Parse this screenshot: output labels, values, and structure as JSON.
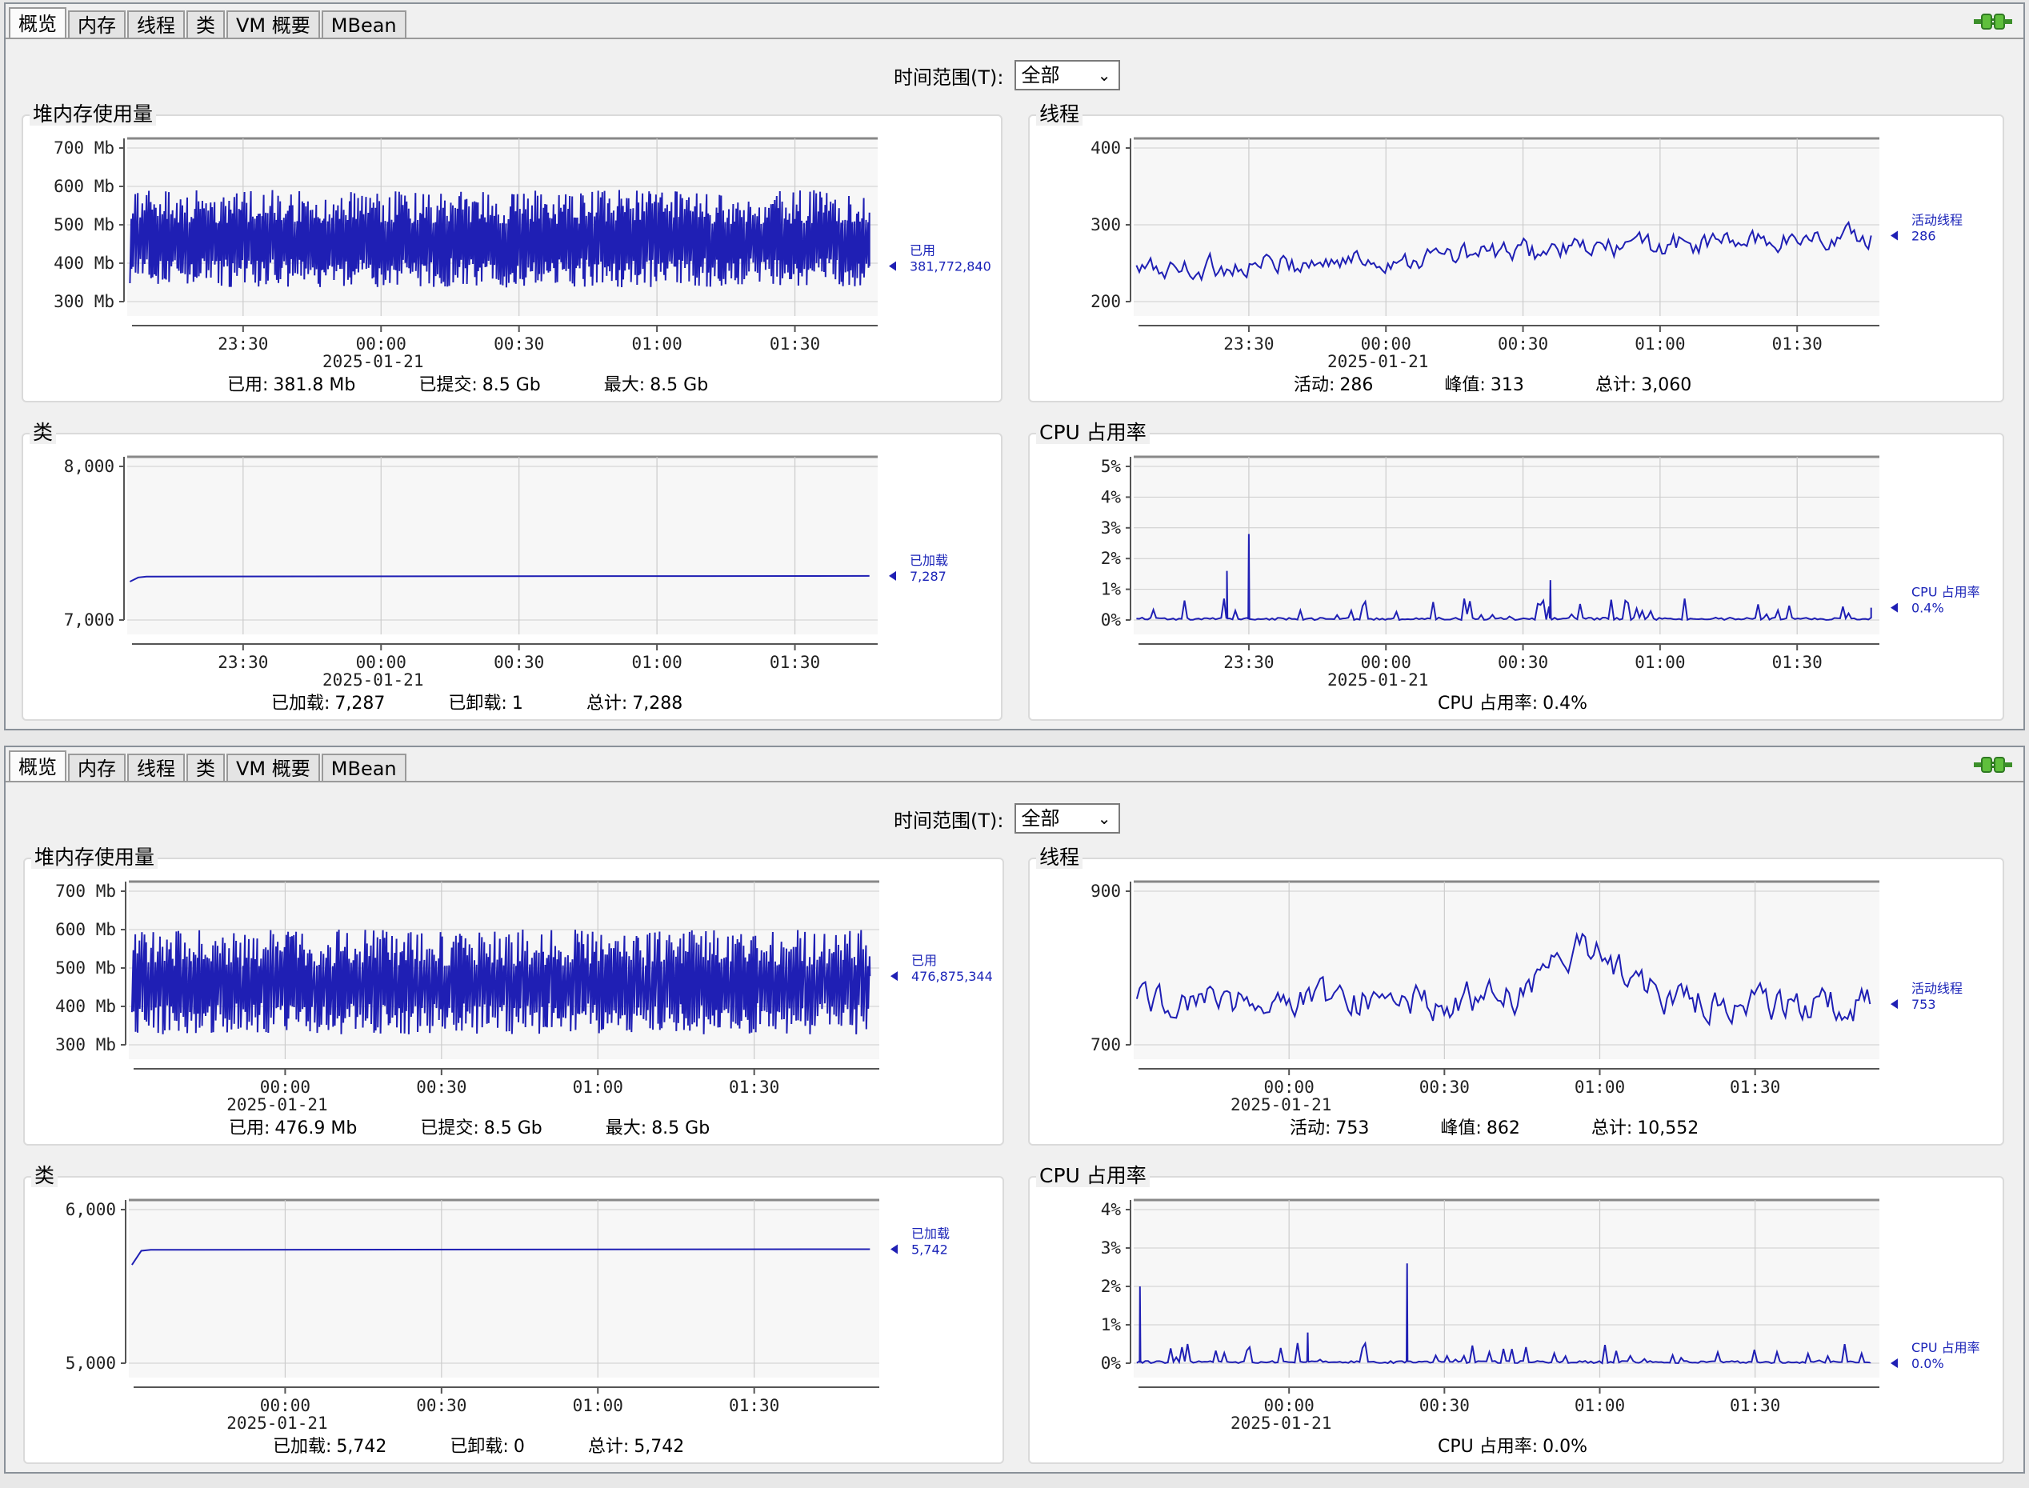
{
  "colors": {
    "series": "#1f1fb4",
    "plot_bg": "#f7f7f7",
    "grid": "#cccccc"
  },
  "windows": [
    {
      "tabs": [
        "概览",
        "内存",
        "线程",
        "类",
        "VM 概要",
        "MBean"
      ],
      "connection_icon": "plug-connected-icon",
      "time_range": {
        "label": "时间范围(T):",
        "value": "全部"
      },
      "heap": {
        "title": "堆内存使用量",
        "legend": {
          "name": "已用",
          "value": "381,772,840"
        },
        "stats": [
          {
            "label": "已用:",
            "value": "381.8 Mb"
          },
          {
            "label": "已提交:",
            "value": "8.5 Gb"
          },
          {
            "label": "最大:",
            "value": "8.5 Gb"
          }
        ]
      },
      "threads": {
        "title": "线程",
        "legend": {
          "name": "活动线程",
          "value": "286"
        },
        "stats": [
          {
            "label": "活动:",
            "value": "286"
          },
          {
            "label": "峰值:",
            "value": "313"
          },
          {
            "label": "总计:",
            "value": "3,060"
          }
        ]
      },
      "classes": {
        "title": "类",
        "legend": {
          "name": "已加载",
          "value": "7,287"
        },
        "stats": [
          {
            "label": "已加载:",
            "value": "7,287"
          },
          {
            "label": "已卸载:",
            "value": "1"
          },
          {
            "label": "总计:",
            "value": "7,288"
          }
        ]
      },
      "cpu": {
        "title": "CPU 占用率",
        "legend": {
          "name": "CPU 占用率",
          "value": "0.4%"
        },
        "stats": [
          {
            "label": "CPU 占用率:",
            "value": "0.4%"
          }
        ]
      }
    },
    {
      "tabs": [
        "概览",
        "内存",
        "线程",
        "类",
        "VM 概要",
        "MBean"
      ],
      "connection_icon": "plug-connected-icon",
      "time_range": {
        "label": "时间范围(T):",
        "value": "全部"
      },
      "heap": {
        "title": "堆内存使用量",
        "legend": {
          "name": "已用",
          "value": "476,875,344"
        },
        "stats": [
          {
            "label": "已用:",
            "value": "476.9 Mb"
          },
          {
            "label": "已提交:",
            "value": "8.5 Gb"
          },
          {
            "label": "最大:",
            "value": "8.5 Gb"
          }
        ]
      },
      "threads": {
        "title": "线程",
        "legend": {
          "name": "活动线程",
          "value": "753"
        },
        "stats": [
          {
            "label": "活动:",
            "value": "753"
          },
          {
            "label": "峰值:",
            "value": "862"
          },
          {
            "label": "总计:",
            "value": "10,552"
          }
        ]
      },
      "classes": {
        "title": "类",
        "legend": {
          "name": "已加载",
          "value": "5,742"
        },
        "stats": [
          {
            "label": "已加载:",
            "value": "5,742"
          },
          {
            "label": "已卸载:",
            "value": "0"
          },
          {
            "label": "总计:",
            "value": "5,742"
          }
        ]
      },
      "cpu": {
        "title": "CPU 占用率",
        "legend": {
          "name": "CPU 占用率",
          "value": "0.0%"
        },
        "stats": [
          {
            "label": "CPU 占用率:",
            "value": "0.0%"
          }
        ]
      }
    }
  ],
  "chart_data": [
    {
      "id": "w0-heap",
      "type": "line",
      "title": "堆内存使用量",
      "series": [
        {
          "name": "已用",
          "pattern": "sawtooth",
          "min": 320,
          "max": 600,
          "last": 381.8
        }
      ],
      "yticks": [
        "700 Mb",
        "600 Mb",
        "500 Mb",
        "400 Mb",
        "300 Mb"
      ],
      "ylim": [
        280,
        720
      ],
      "xticks": [
        {
          "t": 23.5,
          "label": "23:30"
        },
        {
          "t": 24,
          "label": "00:00",
          "sub": "2025-01-21"
        },
        {
          "t": 24.5,
          "label": "00:30"
        },
        {
          "t": 25,
          "label": "01:00"
        },
        {
          "t": 25.5,
          "label": "01:30"
        }
      ],
      "xlim": [
        23.08,
        25.8
      ],
      "grid": true
    },
    {
      "id": "w0-threads",
      "type": "line",
      "title": "线程",
      "series": [
        {
          "name": "活动线程",
          "pattern": "noisy",
          "start": 240,
          "end": 286,
          "min": 220,
          "max": 313,
          "last": 286
        }
      ],
      "yticks": [
        "400",
        "300",
        "200"
      ],
      "ylim": [
        200,
        400
      ],
      "xticks": [
        {
          "t": 23.5,
          "label": "23:30"
        },
        {
          "t": 24,
          "label": "00:00",
          "sub": "2025-01-21"
        },
        {
          "t": 24.5,
          "label": "00:30"
        },
        {
          "t": 25,
          "label": "01:00"
        },
        {
          "t": 25.5,
          "label": "01:30"
        }
      ],
      "xlim": [
        23.08,
        25.8
      ],
      "grid": true
    },
    {
      "id": "w0-classes",
      "type": "line",
      "title": "类",
      "series": [
        {
          "name": "已加载",
          "pattern": "flat",
          "start": 7250,
          "level": 7287,
          "last": 7287
        }
      ],
      "yticks": [
        "8,000",
        "7,000"
      ],
      "ylim": [
        7000,
        8000
      ],
      "xticks": [
        {
          "t": 23.5,
          "label": "23:30"
        },
        {
          "t": 24,
          "label": "00:00",
          "sub": "2025-01-21"
        },
        {
          "t": 24.5,
          "label": "00:30"
        },
        {
          "t": 25,
          "label": "01:00"
        },
        {
          "t": 25.5,
          "label": "01:30"
        }
      ],
      "xlim": [
        23.08,
        25.8
      ],
      "grid": true
    },
    {
      "id": "w0-cpu",
      "type": "line",
      "title": "CPU 占用率",
      "series": [
        {
          "name": "CPU 占用率",
          "pattern": "spikes",
          "base": 0.2,
          "peaks": [
            {
              "t": 23.42,
              "v": 1.6
            },
            {
              "t": 23.5,
              "v": 2.8
            },
            {
              "t": 24.6,
              "v": 1.3
            }
          ],
          "last": 0.4
        }
      ],
      "yticks": [
        "5%",
        "4%",
        "3%",
        "2%",
        "1%",
        "0%"
      ],
      "ylim": [
        0,
        5
      ],
      "xticks": [
        {
          "t": 23.5,
          "label": "23:30"
        },
        {
          "t": 24,
          "label": "00:00",
          "sub": "2025-01-21"
        },
        {
          "t": 24.5,
          "label": "00:30"
        },
        {
          "t": 25,
          "label": "01:00"
        },
        {
          "t": 25.5,
          "label": "01:30"
        }
      ],
      "xlim": [
        23.08,
        25.8
      ],
      "grid": true
    },
    {
      "id": "w1-heap",
      "type": "line",
      "title": "堆内存使用量",
      "series": [
        {
          "name": "已用",
          "pattern": "sawtooth",
          "min": 310,
          "max": 610,
          "last": 476.9
        }
      ],
      "yticks": [
        "700 Mb",
        "600 Mb",
        "500 Mb",
        "400 Mb",
        "300 Mb"
      ],
      "ylim": [
        280,
        720
      ],
      "xticks": [
        {
          "t": 24,
          "label": "00:00",
          "sub": "2025-01-21"
        },
        {
          "t": 24.5,
          "label": "00:30"
        },
        {
          "t": 25,
          "label": "01:00"
        },
        {
          "t": 25.5,
          "label": "01:30"
        }
      ],
      "xlim": [
        23.5,
        25.9
      ],
      "grid": true
    },
    {
      "id": "w1-threads",
      "type": "line",
      "title": "线程",
      "series": [
        {
          "name": "活动线程",
          "pattern": "noisy",
          "start": 760,
          "end": 753,
          "min": 720,
          "max": 862,
          "last": 753
        }
      ],
      "yticks": [
        "900",
        "700"
      ],
      "ylim": [
        700,
        900
      ],
      "xticks": [
        {
          "t": 24,
          "label": "00:00",
          "sub": "2025-01-21"
        },
        {
          "t": 24.5,
          "label": "00:30"
        },
        {
          "t": 25,
          "label": "01:00"
        },
        {
          "t": 25.5,
          "label": "01:30"
        }
      ],
      "xlim": [
        23.5,
        25.9
      ],
      "grid": true
    },
    {
      "id": "w1-classes",
      "type": "line",
      "title": "类",
      "series": [
        {
          "name": "已加载",
          "pattern": "flat",
          "start": 5640,
          "level": 5742,
          "last": 5742
        }
      ],
      "yticks": [
        "6,000",
        "5,000"
      ],
      "ylim": [
        5000,
        6000
      ],
      "xticks": [
        {
          "t": 24,
          "label": "00:00",
          "sub": "2025-01-21"
        },
        {
          "t": 24.5,
          "label": "00:30"
        },
        {
          "t": 25,
          "label": "01:00"
        },
        {
          "t": 25.5,
          "label": "01:30"
        }
      ],
      "xlim": [
        23.5,
        25.9
      ],
      "grid": true
    },
    {
      "id": "w1-cpu",
      "type": "line",
      "title": "CPU 占用率",
      "series": [
        {
          "name": "CPU 占用率",
          "pattern": "spikes",
          "base": 0.15,
          "peaks": [
            {
              "t": 23.52,
              "v": 2.0
            },
            {
              "t": 24.38,
              "v": 2.6
            },
            {
              "t": 24.06,
              "v": 0.8
            }
          ],
          "last": 0.0
        }
      ],
      "yticks": [
        "4%",
        "3%",
        "2%",
        "1%",
        "0%"
      ],
      "ylim": [
        0,
        4
      ],
      "xticks": [
        {
          "t": 24,
          "label": "00:00",
          "sub": "2025-01-21"
        },
        {
          "t": 24.5,
          "label": "00:30"
        },
        {
          "t": 25,
          "label": "01:00"
        },
        {
          "t": 25.5,
          "label": "01:30"
        }
      ],
      "xlim": [
        23.5,
        25.9
      ],
      "grid": true
    }
  ]
}
